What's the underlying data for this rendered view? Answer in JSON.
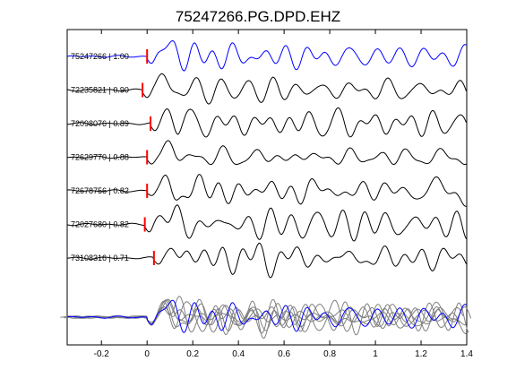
{
  "chart_data": {
    "type": "line",
    "title": "75247266.PG.DPD.EHZ",
    "xlabel": "",
    "ylabel": "",
    "xlim": [
      -0.35,
      1.4
    ],
    "x_ticks": [
      -0.2,
      0,
      0.2,
      0.4,
      0.6,
      0.8,
      1,
      1.2,
      1.4
    ],
    "x_tick_labels": [
      "-0.2",
      "0",
      "0.2",
      "0.4",
      "0.6",
      "0.8",
      "1",
      "1.2",
      "1.4"
    ],
    "grid": false,
    "pick_time_unit": "s",
    "traces": [
      {
        "label": "75247266 | 1.00",
        "id": "75247266",
        "cc": 1.0,
        "pick": 0.0,
        "color": "#0000ff",
        "seed": 3
      },
      {
        "label": "72235821 | 0.90",
        "id": "72235821",
        "cc": 0.9,
        "pick": -0.02,
        "color": "#000000",
        "seed": 11
      },
      {
        "label": "72098076 | 0.89",
        "id": "72098076",
        "cc": 0.89,
        "pick": 0.015,
        "color": "#000000",
        "seed": 19
      },
      {
        "label": "72629770 | 0.88",
        "id": "72629770",
        "cc": 0.88,
        "pick": 0.0,
        "color": "#000000",
        "seed": 27
      },
      {
        "label": "72678756 | 0.82",
        "id": "72678756",
        "cc": 0.82,
        "pick": 0.0,
        "color": "#000000",
        "seed": 35
      },
      {
        "label": "72027680 | 0.82",
        "id": "72027680",
        "cc": 0.82,
        "pick": -0.01,
        "color": "#000000",
        "seed": 43
      },
      {
        "label": "73108316 | 0.71",
        "id": "73108316",
        "cc": 0.71,
        "pick": 0.03,
        "color": "#000000",
        "seed": 51
      }
    ],
    "overlay": {
      "reference_color": "#0000ff",
      "others_color": "#808080"
    },
    "pick_color": "#ff0000"
  }
}
